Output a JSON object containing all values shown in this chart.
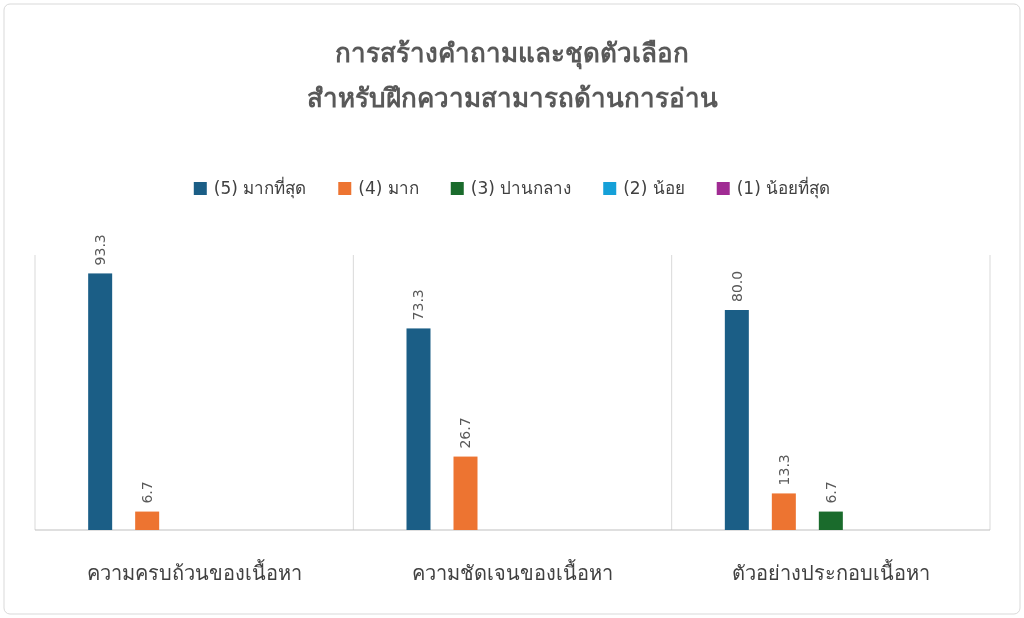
{
  "chart_data": {
    "type": "bar",
    "title": "การสร้างคำถามและชุดตัวเลือก\nสำหรับฝึกความสามารถด้านการอ่าน",
    "categories": [
      "ความครบถ้วนของเนื้อหา",
      "ความชัดเจนของเนื้อหา",
      "ตัวอย่างประกอบเนื้อหา"
    ],
    "series": [
      {
        "name": "(5) มากที่สุด",
        "color": "#1b5e86",
        "values": [
          93.3,
          73.3,
          80.0
        ],
        "value_labels": [
          "93.3",
          "73.3",
          "80.0"
        ]
      },
      {
        "name": "(4) มาก",
        "color": "#ed7431",
        "values": [
          6.7,
          26.7,
          13.3
        ],
        "value_labels": [
          "6.7",
          "26.7",
          "13.3"
        ]
      },
      {
        "name": "(3) ปานกลาง",
        "color": "#1a6b2c",
        "values": [
          null,
          null,
          6.7
        ],
        "value_labels": [
          null,
          null,
          "6.7"
        ]
      },
      {
        "name": "(2) น้อย",
        "color": "#15a0d8",
        "values": [
          null,
          null,
          null
        ]
      },
      {
        "name": "(1) น้อยที่สุด",
        "color": "#a02b93",
        "values": [
          null,
          null,
          null
        ]
      }
    ],
    "ylim": [
      0,
      100
    ],
    "grid": "x",
    "legend": "top",
    "tick_labels": "x"
  }
}
